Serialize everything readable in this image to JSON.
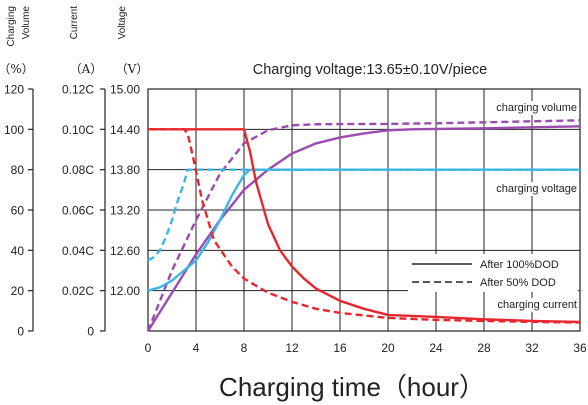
{
  "chart_data": {
    "type": "line",
    "title": "Charging voltage:13.65±0.10V/piece",
    "xlabel": "Charging time（hour）",
    "x_ticks": [
      0,
      4,
      8,
      12,
      16,
      20,
      24,
      28,
      32,
      36
    ],
    "xlim": [
      0,
      36
    ],
    "axes": [
      {
        "title": "Charging Volume",
        "unit": "（%）",
        "ticks": [
          "120",
          "100",
          "80",
          "60",
          "40",
          "20",
          "0"
        ],
        "ylim": [
          0,
          120
        ]
      },
      {
        "title": "Current",
        "unit": "（A）",
        "ticks": [
          "0.12C",
          "0.10C",
          "0.08C",
          "0.06C",
          "0.04C",
          "0.02C",
          "0"
        ],
        "ylim": [
          0,
          0.12
        ]
      },
      {
        "title": "Voltage",
        "unit": "（V）",
        "ticks": [
          "15.00",
          "14.40",
          "13.80",
          "13.20",
          "12.60",
          "12.00"
        ],
        "ylim": [
          11.4,
          15.0
        ]
      }
    ],
    "curve_labels": {
      "volume": "charging volume",
      "voltage": "charging voltage",
      "current": "charging current"
    },
    "legend": {
      "position": "bottom-right",
      "entries": [
        {
          "style": "solid",
          "label": "After 100%DOD"
        },
        {
          "style": "dashed",
          "label": "After  50% DOD"
        }
      ]
    },
    "colors": {
      "volume": "#9b4bb0",
      "voltage": "#3cb6e6",
      "current": "#e8262e",
      "grid": "#222222"
    },
    "series": [
      {
        "curve": "volume",
        "axis": "Charging Volume",
        "dod": "100%",
        "style": "solid",
        "x": [
          0,
          2,
          4,
          6,
          8,
          10,
          12,
          14,
          16,
          18,
          20,
          22,
          24,
          28,
          32,
          36
        ],
        "y": [
          0,
          19,
          38,
          55,
          70,
          80,
          88,
          93,
          96,
          98,
          99.5,
          100,
          100.2,
          100.5,
          101,
          101.5
        ]
      },
      {
        "curve": "volume",
        "axis": "Charging Volume",
        "dod": "50%",
        "style": "dashed",
        "x": [
          0,
          2,
          4,
          6,
          8,
          10,
          12,
          14,
          16,
          20,
          24,
          28,
          32,
          36
        ],
        "y": [
          0,
          30,
          55,
          78,
          93,
          99.5,
          102,
          102.5,
          102.6,
          102.7,
          103,
          103.5,
          104,
          104.5
        ]
      },
      {
        "curve": "voltage",
        "axis": "Voltage",
        "dod": "100%",
        "style": "solid",
        "x": [
          0,
          1,
          2,
          3,
          4,
          5,
          6,
          7,
          8,
          8.5,
          12,
          20,
          28,
          36
        ],
        "y": [
          12.0,
          12.05,
          12.15,
          12.3,
          12.45,
          12.72,
          13.05,
          13.42,
          13.72,
          13.8,
          13.8,
          13.8,
          13.8,
          13.8
        ]
      },
      {
        "curve": "voltage",
        "axis": "Voltage",
        "dod": "50%",
        "style": "dashed",
        "x": [
          0,
          0.5,
          1,
          1.5,
          2,
          2.5,
          3,
          3.3,
          4,
          8,
          12,
          20,
          28,
          36
        ],
        "y": [
          12.45,
          12.5,
          12.6,
          12.8,
          13.05,
          13.35,
          13.6,
          13.8,
          13.8,
          13.8,
          13.8,
          13.8,
          13.8,
          13.8
        ]
      },
      {
        "curve": "current",
        "axis": "Current",
        "dod": "100%",
        "style": "solid",
        "x": [
          0,
          8,
          8.5,
          9,
          10,
          11,
          12,
          13,
          14,
          16,
          18,
          20,
          24,
          28,
          32,
          36
        ],
        "y": [
          0.1,
          0.1,
          0.089,
          0.074,
          0.053,
          0.04,
          0.032,
          0.026,
          0.021,
          0.015,
          0.011,
          0.008,
          0.007,
          0.0058,
          0.005,
          0.0045
        ]
      },
      {
        "curve": "current",
        "axis": "Current",
        "dod": "50%",
        "style": "dashed",
        "x": [
          0,
          3,
          3.3,
          3.8,
          4.5,
          5.5,
          7,
          8,
          10,
          12,
          14,
          16,
          20,
          24,
          28,
          32,
          36
        ],
        "y": [
          0.1,
          0.1,
          0.098,
          0.085,
          0.065,
          0.045,
          0.032,
          0.026,
          0.019,
          0.0145,
          0.011,
          0.009,
          0.0065,
          0.0055,
          0.005,
          0.0045,
          0.0042
        ]
      }
    ]
  }
}
